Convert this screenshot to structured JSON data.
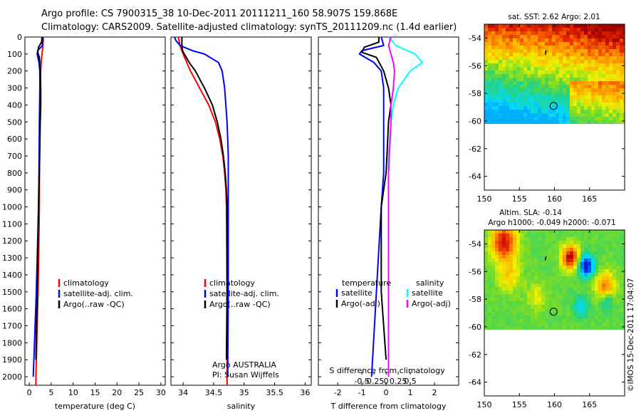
{
  "figure": {
    "title_line1": "Argo profile: CS 7900315_38 10-Dec-2011 20111211_160 58.907S 159.868E",
    "title_line2": "Climatology: CARS2009. Satellite-adjusted climatology: synTS_20111209.nc (1.4d earlier)",
    "footer_vertical": "©IMOS 15-Dec-2011 17:04:07"
  },
  "colors": {
    "climatology": "#ff0000",
    "satellite": "#0000ff",
    "argo": "#000000",
    "satellite_salinity": "#00ffff",
    "argo_salinity": "#ff00ff"
  },
  "chart_data": [
    {
      "type": "line",
      "id": "temperature",
      "xlabel": "temperature (deg C)",
      "xlim": [
        -1,
        31
      ],
      "xticks": [
        0,
        5,
        10,
        15,
        20,
        25,
        30
      ],
      "ylim": [
        0,
        2050
      ],
      "y_inverted": true,
      "yticks": [
        0,
        100,
        200,
        300,
        400,
        500,
        600,
        700,
        800,
        900,
        1000,
        1100,
        1200,
        1300,
        1400,
        1500,
        1600,
        1700,
        1800,
        1900,
        2000
      ],
      "legend": [
        "climatology",
        "satellite-adj. clim.",
        "Argo(..raw -QC)"
      ],
      "series": [
        {
          "name": "climatology",
          "color": "#ff0000",
          "depth": [
            0,
            50,
            100,
            150,
            200,
            300,
            500,
            800,
            1000,
            1500,
            2000,
            2050
          ],
          "values": [
            3.2,
            3.1,
            2.9,
            2.7,
            2.6,
            2.5,
            2.4,
            2.3,
            2.3,
            2.0,
            1.5,
            1.5
          ]
        },
        {
          "name": "satellite-adj. clim.",
          "color": "#0000ff",
          "depth": [
            0,
            50,
            80,
            100,
            150,
            200,
            300,
            500,
            800,
            1000,
            1500,
            2000
          ],
          "values": [
            3.0,
            3.0,
            1.9,
            1.8,
            2.2,
            2.4,
            2.4,
            2.3,
            2.2,
            2.1,
            1.6,
            0.9
          ]
        },
        {
          "name": "Argo(..raw -QC)",
          "color": "#000000",
          "depth": [
            0,
            30,
            60,
            90,
            120,
            200,
            300,
            400,
            500,
            800,
            1000,
            1500,
            1900
          ],
          "values": [
            2.9,
            2.8,
            2.1,
            1.9,
            2.3,
            2.5,
            2.6,
            2.6,
            2.5,
            2.3,
            2.1,
            1.8,
            1.5
          ]
        }
      ]
    },
    {
      "type": "line",
      "id": "salinity",
      "xlabel": "salinity",
      "xlim": [
        33.8,
        36.1
      ],
      "xticks": [
        34,
        34.5,
        35,
        35.5,
        36
      ],
      "xticklabels": [
        "34",
        "34.5",
        "35",
        "35.5",
        "36"
      ],
      "ylim": [
        0,
        2050
      ],
      "y_inverted": true,
      "legend": [
        "climatology",
        "satellite-adj. clim.",
        "Argo(..raw -QC)"
      ],
      "annotation": [
        "Argo AUSTRALIA",
        "PI: Susan Wijffels"
      ],
      "series": [
        {
          "name": "climatology",
          "color": "#ff0000",
          "depth": [
            0,
            50,
            100,
            150,
            200,
            300,
            400,
            500,
            600,
            700,
            800,
            900,
            1000,
            1500,
            2050
          ],
          "values": [
            33.92,
            33.95,
            34.0,
            34.06,
            34.12,
            34.27,
            34.42,
            34.53,
            34.6,
            34.65,
            34.68,
            34.7,
            34.71,
            34.72,
            34.72
          ]
        },
        {
          "name": "satellite-adj. clim.",
          "color": "#0000ff",
          "depth": [
            0,
            20,
            50,
            80,
            100,
            150,
            200,
            300,
            400,
            500,
            600,
            700,
            800,
            900,
            1000,
            1500,
            2000
          ],
          "values": [
            33.86,
            33.88,
            33.95,
            34.15,
            34.35,
            34.58,
            34.64,
            34.68,
            34.7,
            34.72,
            34.73,
            34.74,
            34.74,
            34.74,
            34.74,
            34.74,
            34.73
          ]
        },
        {
          "name": "Argo(..raw -QC)",
          "color": "#000000",
          "depth": [
            0,
            50,
            80,
            100,
            150,
            200,
            300,
            400,
            500,
            600,
            700,
            800,
            900,
            1000,
            1500,
            1900
          ],
          "values": [
            33.98,
            33.98,
            33.99,
            34.02,
            34.1,
            34.2,
            34.35,
            34.48,
            34.56,
            34.62,
            34.66,
            34.69,
            34.71,
            34.72,
            34.72,
            34.71
          ]
        }
      ]
    },
    {
      "type": "line",
      "id": "difference",
      "xlabel": "T difference from climatology",
      "xlabel_top": "S difference from climatology",
      "xlim": [
        -2.8,
        3.0
      ],
      "xticks": [
        -2,
        -1,
        0,
        1,
        2
      ],
      "xticks_top": [
        -0.5,
        -0.25,
        0,
        0.25,
        0.5
      ],
      "xticklabels_top": [
        "-0.5",
        "-0.25",
        "0",
        "0.25",
        "0.5"
      ],
      "ylim": [
        0,
        2050
      ],
      "y_inverted": true,
      "legend_headers": [
        "temperature",
        "salinity"
      ],
      "legend": [
        "satellite",
        "Argo(-adj)",
        "satellite",
        "Argo(-adj)"
      ],
      "series": [
        {
          "name": "satellite",
          "group": "temperature",
          "color": "#0000ff",
          "depth": [
            0,
            50,
            80,
            100,
            150,
            200,
            300,
            500,
            800,
            1000,
            1500,
            2000
          ],
          "values": [
            -0.2,
            -0.1,
            -1.0,
            -1.1,
            -0.5,
            -0.2,
            -0.1,
            -0.1,
            -0.1,
            -0.2,
            -0.4,
            -0.6
          ]
        },
        {
          "name": "Argo(-adj)",
          "group": "temperature",
          "color": "#000000",
          "depth": [
            0,
            30,
            60,
            90,
            120,
            200,
            300,
            400,
            500,
            800,
            1000,
            1500,
            1900
          ],
          "values": [
            -0.3,
            -0.3,
            -0.9,
            -1.0,
            -0.4,
            -0.1,
            0.1,
            0.2,
            0.1,
            0.0,
            -0.2,
            -0.2,
            0.0
          ]
        },
        {
          "name": "satellite",
          "group": "salinity",
          "color": "#00ffff",
          "depth": [
            0,
            50,
            100,
            150,
            200,
            300,
            400,
            500,
            700,
            1000,
            1500,
            2000
          ],
          "values": [
            0.1,
            0.4,
            1.2,
            1.5,
            1.0,
            0.5,
            0.3,
            0.2,
            0.1,
            0.1,
            0.1,
            0.1
          ]
        },
        {
          "name": "Argo(-adj)",
          "group": "salinity",
          "color": "#ff00ff",
          "depth": [
            0,
            50,
            100,
            150,
            200,
            300,
            400,
            500,
            800,
            1000,
            1500,
            2000
          ],
          "values": [
            0.2,
            0.1,
            0.2,
            0.3,
            0.35,
            0.3,
            0.2,
            0.2,
            0.1,
            0.1,
            0.1,
            0.1
          ]
        }
      ]
    },
    {
      "type": "heatmap",
      "id": "sst_map",
      "title": "sat. SST: 2.62  Argo: 2.01",
      "xlim": [
        150,
        170
      ],
      "xticks": [
        150,
        155,
        160,
        165
      ],
      "ylim": [
        -65,
        -53
      ],
      "yticks": [
        -54,
        -56,
        -58,
        -60,
        -62,
        -64
      ],
      "data_extent_lat": [
        -60,
        -53
      ],
      "argo_position": {
        "lon": 159.868,
        "lat": -58.907
      }
    },
    {
      "type": "heatmap",
      "id": "sla_map",
      "title": "Altim. SLA: -0.14",
      "subtitle": "Argo h1000: -0.049 h2000: -0.071",
      "xlim": [
        150,
        170
      ],
      "xticks": [
        150,
        155,
        160,
        165
      ],
      "ylim": [
        -65,
        -53
      ],
      "yticks": [
        -54,
        -56,
        -58,
        -60,
        -62,
        -64
      ],
      "data_extent_lat": [
        -60,
        -53
      ],
      "argo_position": {
        "lon": 159.868,
        "lat": -58.907
      }
    }
  ]
}
